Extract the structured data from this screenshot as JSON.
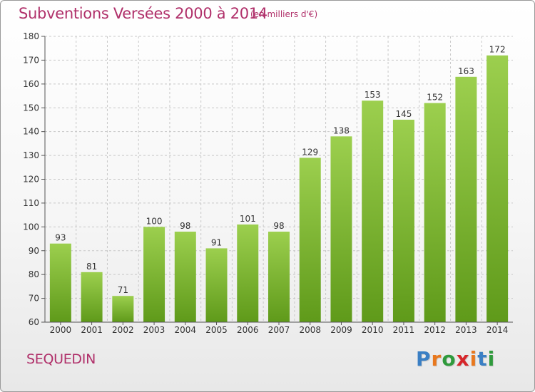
{
  "header": {
    "title": "Subventions Versées 2000 à 2014",
    "subtitle": "(en milliers d'€)"
  },
  "footer": {
    "city": "SEQUEDIN",
    "logo_letters": [
      "P",
      "r",
      "o",
      "x",
      "i",
      "t",
      "i"
    ],
    "logo_colors": [
      "#3a7fc4",
      "#e8781e",
      "#2f9a3c",
      "#d6262b",
      "#e8781e",
      "#3a7fc4",
      "#2f9a3c"
    ]
  },
  "chart_data": {
    "type": "bar",
    "title": "Subventions Versées 2000 à 2014",
    "subtitle": "(en milliers d'€)",
    "categories": [
      "2000",
      "2001",
      "2002",
      "2003",
      "2004",
      "2005",
      "2006",
      "2007",
      "2008",
      "2009",
      "2010",
      "2011",
      "2012",
      "2013",
      "2014"
    ],
    "values": [
      93,
      81,
      71,
      100,
      98,
      91,
      101,
      98,
      129,
      138,
      153,
      145,
      152,
      163,
      172
    ],
    "xlabel": "",
    "ylabel": "",
    "ylim": [
      60,
      180
    ],
    "yticks": [
      60,
      70,
      80,
      90,
      100,
      110,
      120,
      130,
      140,
      150,
      160,
      170,
      180
    ],
    "grid": true,
    "legend": "none",
    "colors": {
      "bar_top": "#9ccf4e",
      "bar_bottom": "#5f9a1a",
      "grid": "#c8c8c8",
      "axis": "#555555",
      "label": "#333333"
    }
  }
}
